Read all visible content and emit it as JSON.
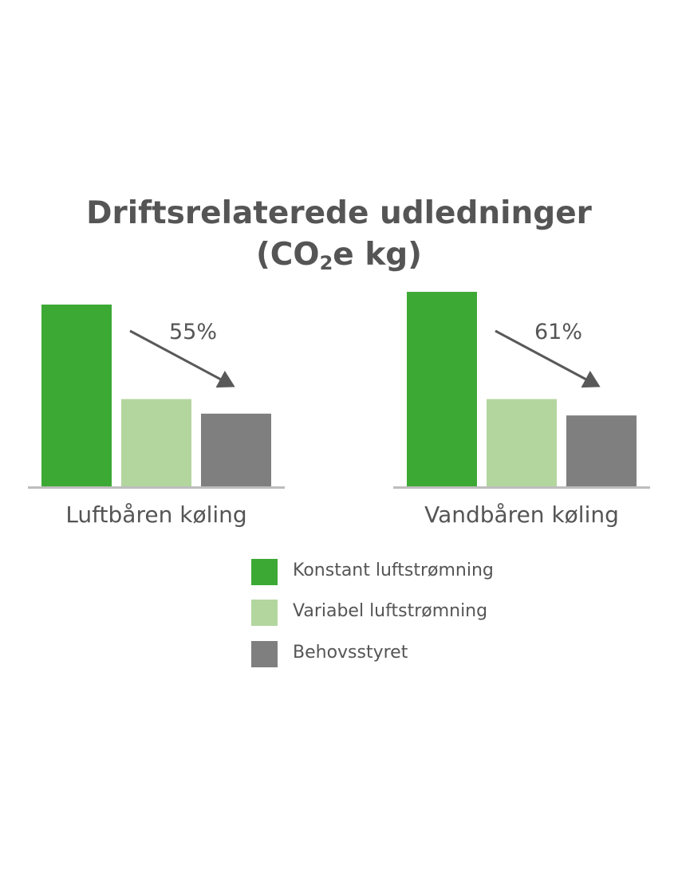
{
  "chart_data": {
    "type": "bar",
    "title_main": "Driftsrelaterede udledninger",
    "title_unit_prefix": "(CO",
    "title_unit_sub": "2",
    "title_unit_suffix": "e kg)",
    "categories": [
      "Luftbåren køling",
      "Vandbåren køling"
    ],
    "series": [
      {
        "name": "Konstant luftstrømning",
        "color": "#3ca935",
        "values": [
          100,
          107
        ]
      },
      {
        "name": "Variabel luftstrømning",
        "color": "#b3d69f",
        "values": [
          48,
          48
        ]
      },
      {
        "name": "Behovsstyret",
        "color": "#7f7f7f",
        "values": [
          40,
          39
        ]
      }
    ],
    "annotations": [
      "55%",
      "61%"
    ],
    "y_axis_shown": false,
    "grid": false,
    "legend_position": "bottom"
  }
}
